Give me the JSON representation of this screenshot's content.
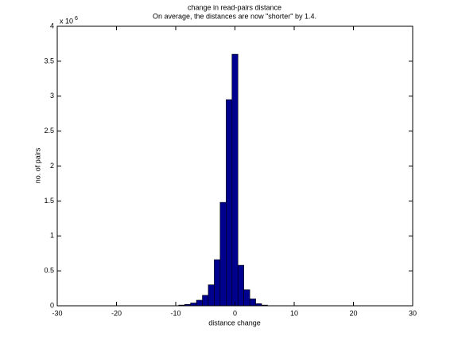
{
  "chart_data": {
    "type": "histogram",
    "title": "change in read-pairs distance",
    "subtitle": "On average, the distances are now \"shorter\" by 1.4.",
    "x_label": "distance change",
    "y_label": "no. of pairs",
    "y_scale_base": "x 10",
    "y_scale_exponent": "6",
    "bins": [
      -9.5,
      -8.5,
      -7.5,
      -6.5,
      -5.5,
      -4.5,
      -3.5,
      -2.5,
      -1.5,
      -0.5,
      0.5,
      1.5,
      2.5,
      3.5,
      4.5,
      5.5
    ],
    "values": [
      0.01,
      0.02,
      0.04,
      0.08,
      0.15,
      0.3,
      0.66,
      1.48,
      2.95,
      3.6,
      0.58,
      0.23,
      0.1,
      0.03,
      0.01
    ],
    "color": "#00008f",
    "xlim": [
      -30,
      30
    ],
    "xticks": [
      -30,
      -20,
      -10,
      0,
      10,
      20,
      30
    ],
    "ylim": [
      0,
      4
    ],
    "yticks": [
      0,
      0.5,
      1,
      1.5,
      2,
      2.5,
      3,
      3.5,
      4
    ],
    "grid": false
  }
}
